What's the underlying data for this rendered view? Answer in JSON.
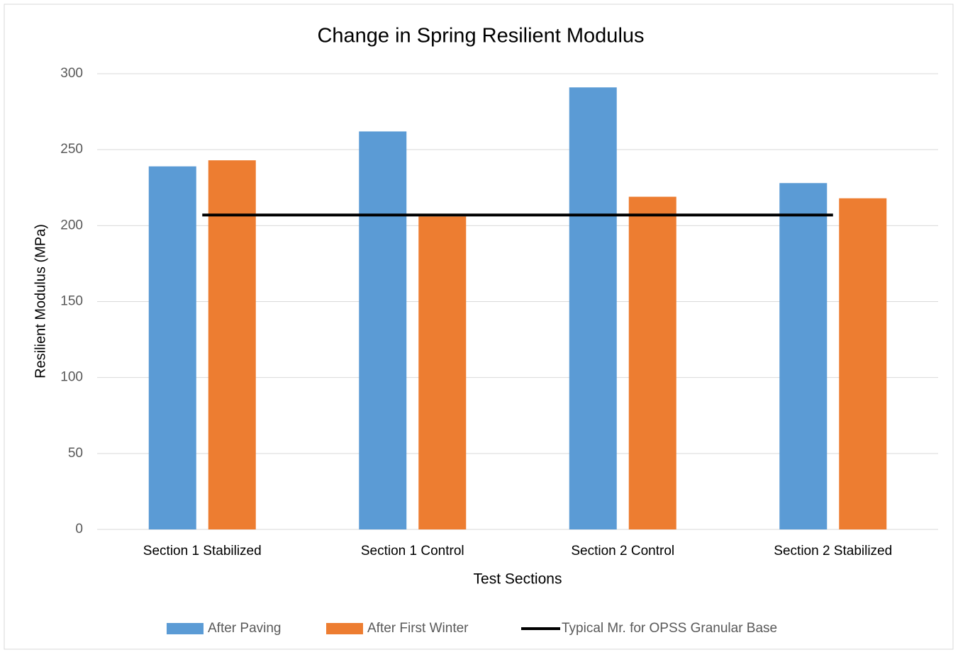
{
  "chart_data": {
    "type": "bar",
    "title": "Change in Spring Resilient Modulus",
    "x_label": "Test Sections",
    "y_label": "Resilient Modulus (MPa)",
    "categories": [
      "Section 1 Stabilized",
      "Section 1 Control",
      "Section 2 Control",
      "Section 2 Stabilized"
    ],
    "series": [
      {
        "name": "After Paving",
        "color": "#5b9bd5",
        "values": [
          239,
          262,
          291,
          228
        ]
      },
      {
        "name": "After First Winter",
        "color": "#ed7d31",
        "values": [
          243,
          206,
          219,
          218
        ]
      },
      {
        "name": "Typical Mr. for OPSS Granular Base",
        "color": "#000000",
        "type": "line",
        "values": [
          207,
          207,
          207,
          207
        ]
      }
    ],
    "ylim": [
      0,
      300
    ],
    "yticks": [
      0,
      50,
      100,
      150,
      200,
      250,
      300
    ],
    "grid": true,
    "legend": "bottom"
  }
}
